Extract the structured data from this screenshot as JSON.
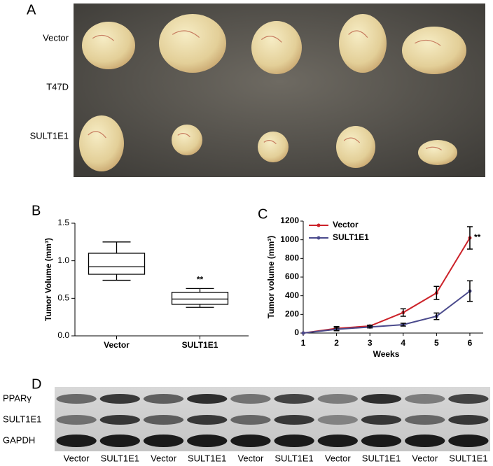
{
  "panel_labels": [
    "A",
    "B",
    "C",
    "D"
  ],
  "photo": {
    "row_labels": [
      "Vector",
      "T47D",
      "SULT1E1"
    ]
  },
  "chart_data": [
    {
      "type": "box",
      "ylabel": "Tumor Volume (mm³)",
      "categories": [
        "Vector",
        "SULT1E1"
      ],
      "whisker_low": [
        0.74,
        0.38
      ],
      "q1": [
        0.82,
        0.42
      ],
      "median": [
        0.92,
        0.49
      ],
      "q3": [
        1.1,
        0.58
      ],
      "whisker_high": [
        1.25,
        0.63
      ],
      "ylim": [
        0,
        1.5
      ],
      "yticks": [
        {
          "value": 0,
          "label": "0.0"
        },
        {
          "value": 0.5,
          "label": "0.5"
        },
        {
          "value": 1,
          "label": "1.0"
        },
        {
          "value": 1.5,
          "label": "1.5"
        }
      ],
      "annotation": "**"
    },
    {
      "type": "line",
      "xlabel": "Weeks",
      "ylabel": "Tumor volume (mm³)",
      "x": [
        1,
        2,
        3,
        4,
        5,
        6
      ],
      "series": [
        {
          "name": "Vector",
          "color": "#cc2229",
          "values": [
            0,
            50,
            75,
            220,
            430,
            1020
          ],
          "errors": [
            0,
            20,
            10,
            40,
            70,
            120
          ]
        },
        {
          "name": "SULT1E1",
          "color": "#4a4a8c",
          "values": [
            0,
            40,
            65,
            90,
            180,
            450
          ],
          "errors": [
            0,
            15,
            10,
            15,
            35,
            110
          ]
        }
      ],
      "xlim": [
        1,
        6.4
      ],
      "xticks": [
        1,
        2,
        3,
        4,
        5,
        6
      ],
      "ylim": [
        0,
        1200
      ],
      "yticks": [
        0,
        200,
        400,
        600,
        800,
        1000,
        1200
      ],
      "legend": "upper left",
      "annotation": "**"
    }
  ],
  "blot": {
    "row_labels": [
      "PPARγ",
      "SULT1E1",
      "GAPDH"
    ],
    "lane_labels": [
      "Vector",
      "SULT1E1",
      "Vector",
      "SULT1E1",
      "Vector",
      "SULT1E1",
      "Vector",
      "SULT1E1",
      "Vector",
      "SULT1E1"
    ]
  }
}
